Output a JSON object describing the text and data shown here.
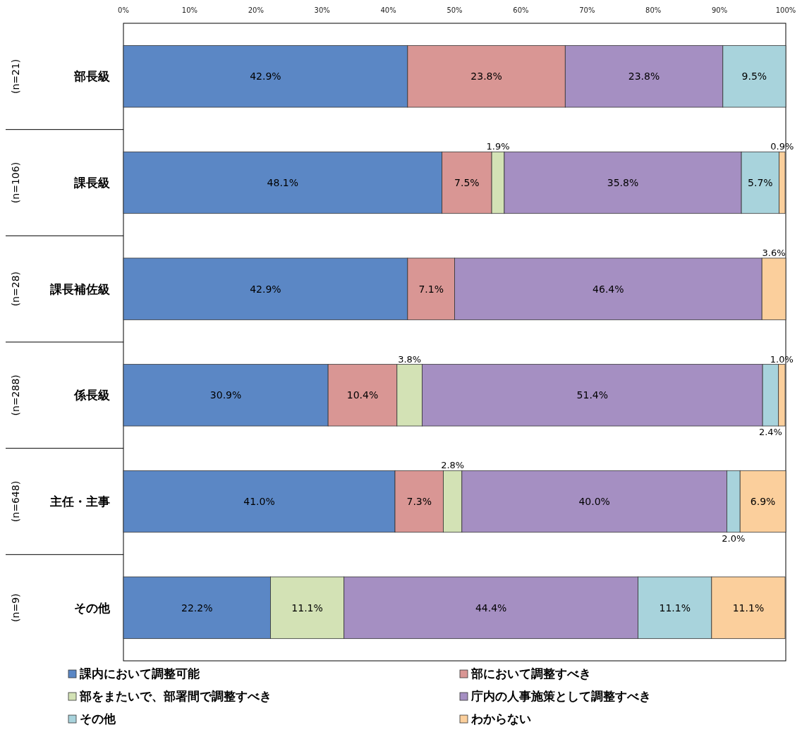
{
  "chart_data": {
    "type": "bar",
    "orientation": "horizontal",
    "stacked": true,
    "categories": [
      "部長級",
      "課長級",
      "課長補佐級",
      "係長級",
      "主任・主事",
      "その他"
    ],
    "annotations": [
      "(n=21)",
      "(n=106)",
      "(n=28)",
      "(n=288)",
      "(n=648)",
      "(n=9)"
    ],
    "series": [
      {
        "name": "課内において調整可能",
        "color": "#5b87c5",
        "values": [
          42.9,
          48.1,
          42.9,
          30.9,
          41.0,
          22.2
        ],
        "value_labels": [
          "42.9%",
          "48.1%",
          "42.9%",
          "30.9%",
          "41.0%",
          "22.2%"
        ]
      },
      {
        "name": "部において調整すべき",
        "color": "#d99694",
        "values": [
          23.8,
          7.5,
          7.1,
          10.4,
          7.3,
          null
        ],
        "value_labels": [
          "23.8%",
          "7.5%",
          "7.1%",
          "10.4%",
          "7.3%",
          null
        ]
      },
      {
        "name": "部をまたいで、部署間で調整すべき",
        "color": "#d3e2b5",
        "values": [
          null,
          1.9,
          null,
          3.8,
          2.8,
          11.1
        ],
        "value_labels": [
          null,
          "1.9%",
          null,
          "3.8%",
          "2.8%",
          "11.1%"
        ]
      },
      {
        "name": "庁内の人事施策として調整すべき",
        "color": "#a58fc2",
        "values": [
          23.8,
          35.8,
          46.4,
          51.4,
          40.0,
          44.4
        ],
        "value_labels": [
          "23.8%",
          "35.8%",
          "46.4%",
          "51.4%",
          "40.0%",
          "44.4%"
        ]
      },
      {
        "name": "その他",
        "color": "#a8d3dc",
        "values": [
          9.5,
          5.7,
          null,
          2.4,
          2.0,
          11.1
        ],
        "value_labels": [
          "9.5%",
          "5.7%",
          null,
          "2.4%",
          "2.0%",
          "11.1%"
        ]
      },
      {
        "name": "わからない",
        "color": "#fbcf9c",
        "values": [
          null,
          0.9,
          3.6,
          1.0,
          6.9,
          11.1
        ],
        "value_labels": [
          null,
          "0.9%",
          "3.6%",
          "1.0%",
          "6.9%",
          "11.1%"
        ]
      }
    ],
    "xlim": [
      0,
      100
    ],
    "xticks": [
      {
        "value": 0,
        "label": "0%"
      },
      {
        "value": 10,
        "label": "10%"
      },
      {
        "value": 20,
        "label": "20%"
      },
      {
        "value": 30,
        "label": "30%"
      },
      {
        "value": 40,
        "label": "40%"
      },
      {
        "value": 50,
        "label": "50%"
      },
      {
        "value": 60,
        "label": "60%"
      },
      {
        "value": 70,
        "label": "70%"
      },
      {
        "value": 80,
        "label": "80%"
      },
      {
        "value": 90,
        "label": "90%"
      },
      {
        "value": 100,
        "label": "100%"
      }
    ],
    "legend": "bottom"
  }
}
